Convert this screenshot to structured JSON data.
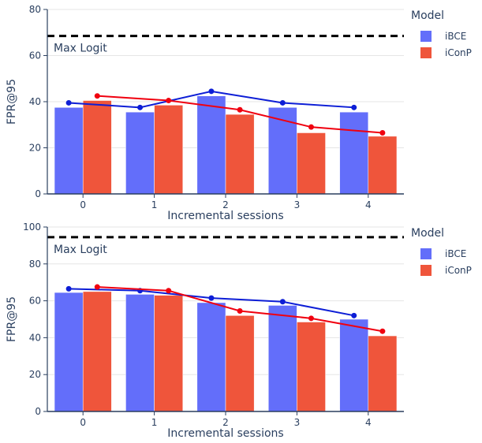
{
  "chart_data": [
    {
      "type": "bar",
      "categories": [
        "0",
        "1",
        "2",
        "3",
        "4"
      ],
      "series": [
        {
          "name": "iBCE",
          "values": [
            37.5,
            35.5,
            42.5,
            37.5,
            35.5
          ],
          "color": "#636efa"
        },
        {
          "name": "iConP",
          "values": [
            40.5,
            38.5,
            34.5,
            26.5,
            25.0
          ],
          "color": "#ef553b"
        }
      ],
      "lines": [
        {
          "series": "iBCE",
          "values": [
            39.5,
            37.5,
            44.5,
            39.5,
            37.5
          ],
          "color": "#0d1ed6"
        },
        {
          "series": "iConP",
          "values": [
            42.5,
            40.5,
            36.5,
            29.0,
            26.5
          ],
          "color": "#f0000f"
        }
      ],
      "reference": {
        "value": 68.5,
        "label": "Max Logit"
      },
      "xlabel": "Incremental sessions",
      "ylabel": "FPR@95",
      "ylim": [
        0,
        80
      ],
      "yticks": [
        0,
        20,
        40,
        60,
        80
      ],
      "grid": true,
      "legend": {
        "title": "Model",
        "placement": "top-right"
      }
    },
    {
      "type": "bar",
      "categories": [
        "0",
        "1",
        "2",
        "3",
        "4"
      ],
      "series": [
        {
          "name": "iBCE",
          "values": [
            64.5,
            63.5,
            59.0,
            57.5,
            50.0
          ],
          "color": "#636efa"
        },
        {
          "name": "iConP",
          "values": [
            65.0,
            63.0,
            52.0,
            48.5,
            41.0
          ],
          "color": "#ef553b"
        }
      ],
      "lines": [
        {
          "series": "iBCE",
          "values": [
            66.5,
            65.5,
            61.5,
            59.5,
            52.0
          ],
          "color": "#0d1ed6"
        },
        {
          "series": "iConP",
          "values": [
            67.5,
            65.5,
            54.5,
            50.5,
            43.5
          ],
          "color": "#f0000f"
        }
      ],
      "reference": {
        "value": 94.5,
        "label": "Max Logit"
      },
      "xlabel": "Incremental sessions",
      "ylabel": "FPR@95",
      "ylim": [
        0,
        100
      ],
      "yticks": [
        0,
        20,
        40,
        60,
        80,
        100
      ],
      "grid": true,
      "legend": {
        "title": "Model",
        "placement": "top-right"
      }
    }
  ]
}
